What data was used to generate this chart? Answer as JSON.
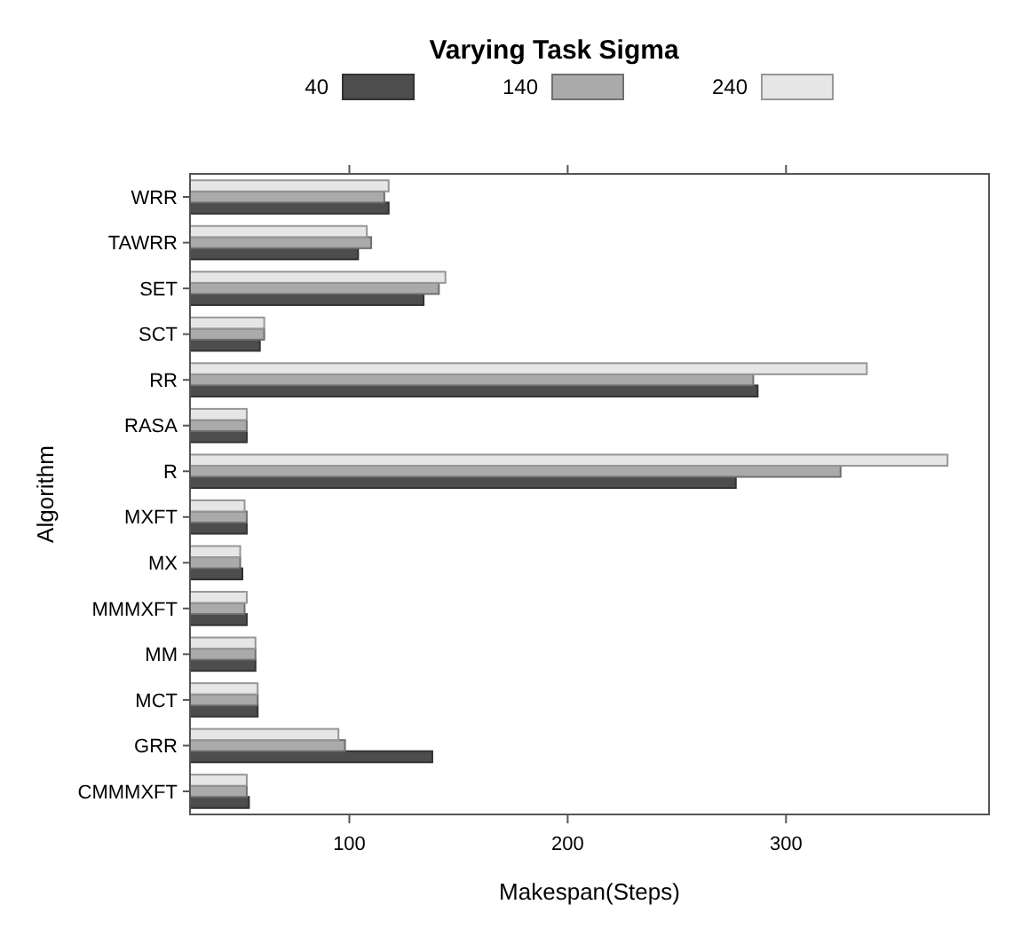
{
  "chart_data": {
    "type": "bar",
    "orientation": "horizontal",
    "legend_title": "Varying Task Sigma",
    "xlabel": "Makespan(Steps)",
    "ylabel": "Algorithm",
    "categories": [
      "WRR",
      "TAWRR",
      "SET",
      "SCT",
      "RR",
      "RASA",
      "R",
      "MXFT",
      "MX",
      "MMMXFT",
      "MM",
      "MCT",
      "GRR",
      "CMMMXFT"
    ],
    "series": [
      {
        "name": "40",
        "color": "#4d4d4d",
        "values": [
          118,
          104,
          134,
          59,
          287,
          53,
          277,
          53,
          51,
          53,
          57,
          58,
          138,
          54
        ]
      },
      {
        "name": "140",
        "color": "#aaaaaa",
        "values": [
          116,
          110,
          141,
          61,
          285,
          53,
          325,
          53,
          50,
          52,
          57,
          58,
          98,
          53
        ]
      },
      {
        "name": "240",
        "color": "#e6e6e6",
        "values": [
          118,
          108,
          144,
          61,
          337,
          53,
          374,
          52,
          50,
          53,
          57,
          58,
          95,
          53
        ]
      }
    ],
    "xlim": [
      27,
      393
    ],
    "xticks": [
      100,
      200,
      300
    ],
    "legend": "top",
    "grid": false
  }
}
